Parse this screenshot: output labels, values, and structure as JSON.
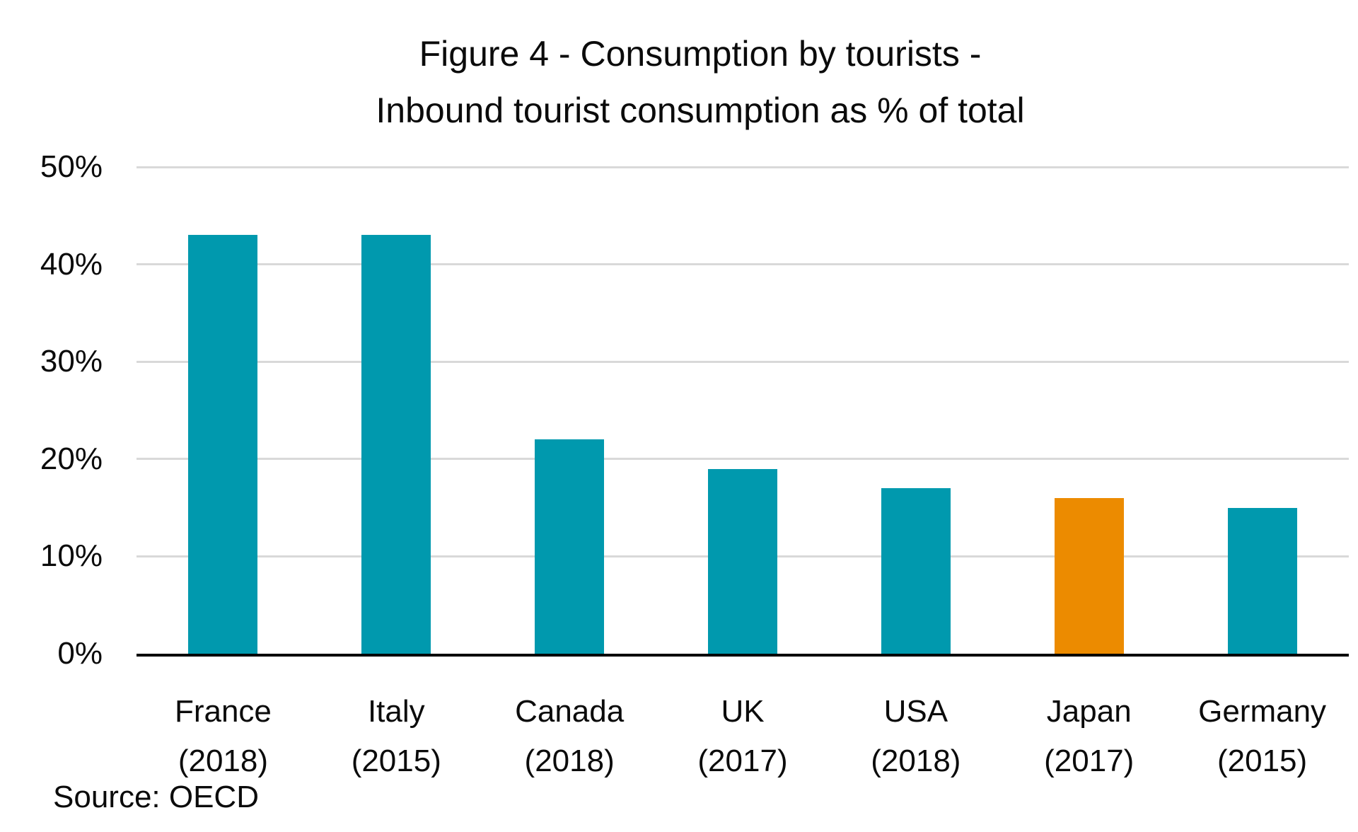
{
  "title": {
    "line1": "Figure 4 - Consumption by tourists -",
    "line2": "Inbound tourist consumption as % of total"
  },
  "source": "Source: OECD",
  "colors": {
    "bar_teal": "#0099AE",
    "bar_highlight_orange": "#EC8B00",
    "gridline": "#D9D9D9",
    "axis_line": "#000000",
    "text": "#0B0B0B",
    "background": "#FFFFFF"
  },
  "chart_data": {
    "type": "bar",
    "title": "Figure 4 - Consumption by tourists - Inbound tourist consumption as % of total",
    "categories": [
      "France (2018)",
      "Italy (2015)",
      "Canada (2018)",
      "UK (2017)",
      "USA (2018)",
      "Japan (2017)",
      "Germany (2015)"
    ],
    "values": [
      43,
      43,
      22,
      19,
      17,
      16,
      15
    ],
    "unit": "%",
    "xlabel": "",
    "ylabel": "",
    "ylim": [
      0,
      50
    ],
    "ytick_values": [
      0,
      10,
      20,
      30,
      40,
      50
    ],
    "yticks": [
      "0%",
      "10%",
      "20%",
      "30%",
      "40%",
      "50%"
    ],
    "grid": "horizontal",
    "legend": "none",
    "bar_color_default": "#0099AE",
    "highlight_index": 5,
    "highlight_color": "#EC8B00",
    "source": "Source: OECD"
  }
}
